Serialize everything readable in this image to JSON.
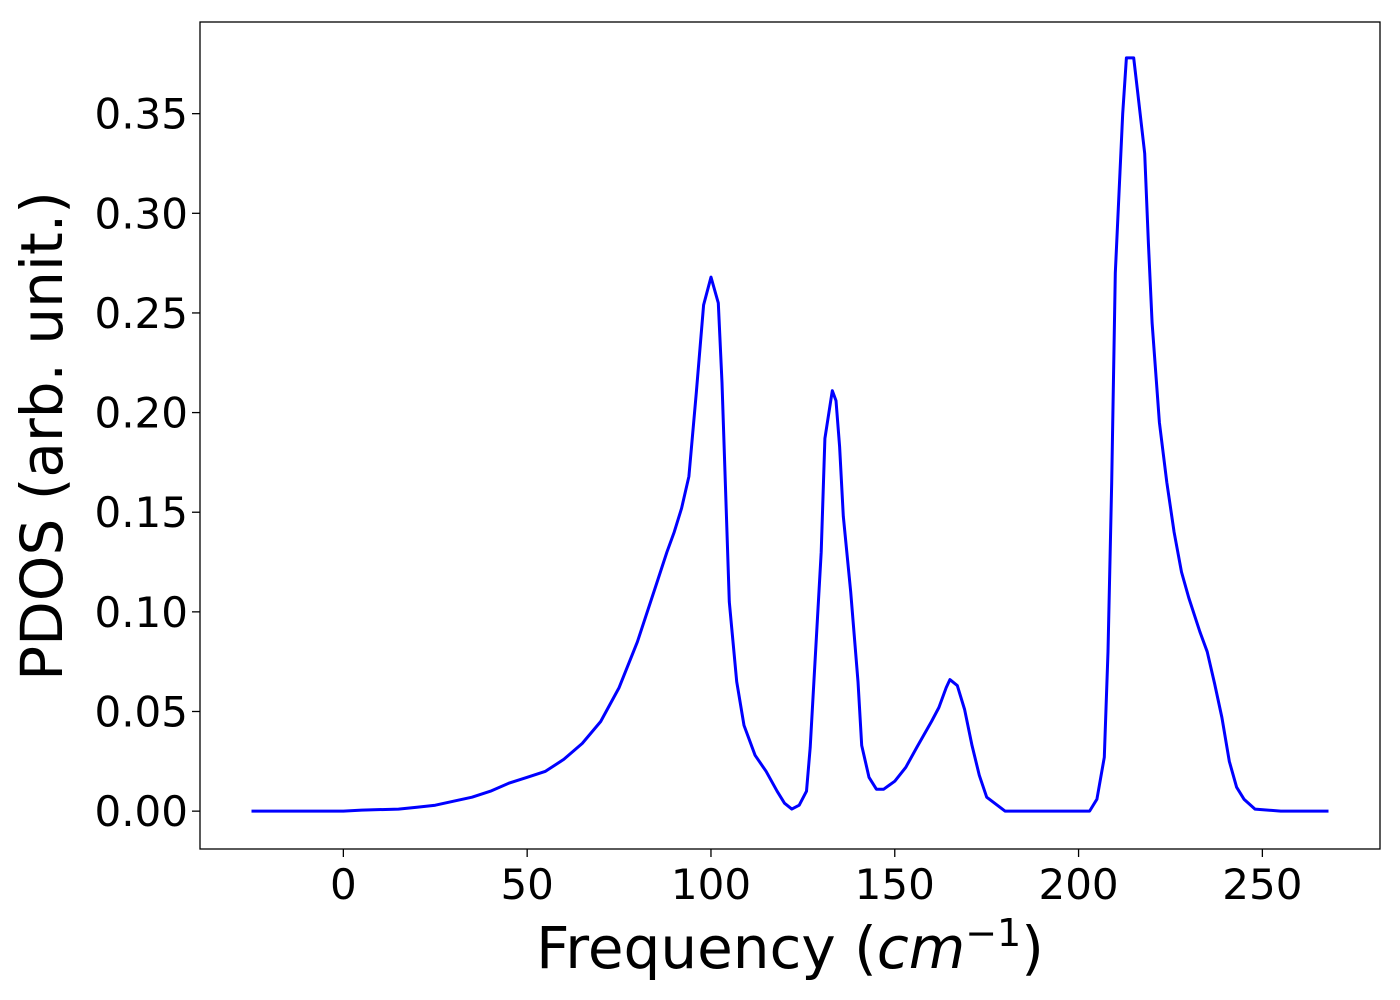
{
  "chart_data": {
    "type": "line",
    "xlabel": "Frequency (",
    "xlabel_math": "cm",
    "xlabel_sup": "−1",
    "xlabel_end": ")",
    "ylabel": "PDOS (arb. unit.)",
    "xlim": [
      -39,
      282
    ],
    "ylim": [
      -0.019,
      0.396
    ],
    "xticks": [
      0,
      50,
      100,
      150,
      200,
      250
    ],
    "xtick_labels": [
      "0",
      "50",
      "100",
      "150",
      "200",
      "250"
    ],
    "yticks": [
      0.0,
      0.05,
      0.1,
      0.15,
      0.2,
      0.25,
      0.3,
      0.35
    ],
    "ytick_labels": [
      "0.00",
      "0.05",
      "0.10",
      "0.15",
      "0.20",
      "0.25",
      "0.30",
      "0.35"
    ],
    "grid": false,
    "series": [
      {
        "color": "#0000ff",
        "x": [
          -25,
          0,
          5,
          15,
          20,
          25,
          30,
          35,
          40,
          45,
          50,
          55,
          60,
          65,
          70,
          75,
          80,
          85,
          88,
          90,
          92,
          94,
          96,
          98,
          100,
          102,
          103,
          105,
          107,
          109,
          112,
          115,
          118,
          120,
          122,
          124,
          126,
          127,
          128,
          130,
          131,
          133,
          134,
          135,
          136,
          138,
          140,
          141,
          143,
          145,
          147,
          150,
          153,
          156,
          160,
          162,
          164,
          165,
          167,
          169,
          171,
          173,
          175,
          180,
          195,
          203,
          205,
          207,
          208,
          209,
          210,
          212,
          213,
          215,
          216,
          218,
          219,
          220,
          222,
          224,
          226,
          228,
          230,
          233,
          235,
          237,
          239,
          241,
          243,
          245,
          248,
          255,
          268
        ],
        "y": [
          0.0,
          0.0,
          0.0005,
          0.001,
          0.002,
          0.003,
          0.005,
          0.007,
          0.01,
          0.014,
          0.017,
          0.02,
          0.026,
          0.034,
          0.045,
          0.062,
          0.085,
          0.113,
          0.13,
          0.14,
          0.152,
          0.168,
          0.21,
          0.254,
          0.268,
          0.255,
          0.215,
          0.105,
          0.065,
          0.043,
          0.028,
          0.02,
          0.01,
          0.004,
          0.001,
          0.003,
          0.01,
          0.032,
          0.065,
          0.13,
          0.187,
          0.211,
          0.206,
          0.183,
          0.148,
          0.11,
          0.065,
          0.033,
          0.017,
          0.011,
          0.011,
          0.015,
          0.022,
          0.032,
          0.045,
          0.052,
          0.062,
          0.066,
          0.063,
          0.051,
          0.033,
          0.018,
          0.007,
          0.0,
          0.0,
          0.0,
          0.006,
          0.027,
          0.08,
          0.165,
          0.27,
          0.35,
          0.378,
          0.378,
          0.362,
          0.33,
          0.285,
          0.245,
          0.195,
          0.165,
          0.14,
          0.12,
          0.107,
          0.09,
          0.08,
          0.064,
          0.047,
          0.025,
          0.012,
          0.006,
          0.001,
          0.0,
          0.0
        ]
      }
    ]
  }
}
